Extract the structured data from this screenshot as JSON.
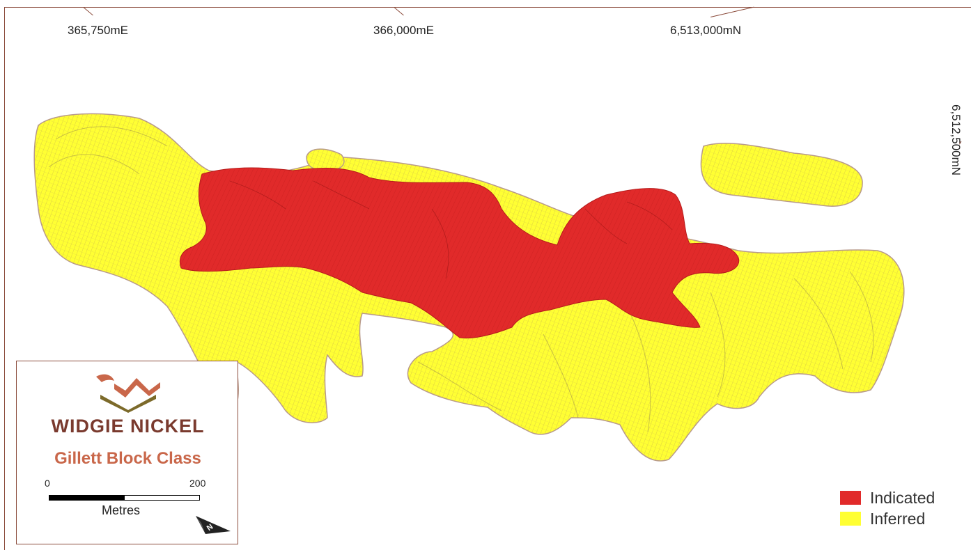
{
  "coordinates": {
    "easting_1": "365,750mE",
    "easting_2": "366,000mE",
    "northing_1": "6,513,000mN",
    "northing_2": "6,512,500mN"
  },
  "legend": {
    "items": [
      {
        "label": "Indicated",
        "color": "#e12a2a"
      },
      {
        "label": "Inferred",
        "color": "#ffff33"
      }
    ]
  },
  "infobox": {
    "company": "WIDGIE NICKEL",
    "subtitle": "Gillett Block Class",
    "scale": {
      "min": "0",
      "max": "200",
      "unit": "Metres"
    },
    "north_arrow_label": "N"
  },
  "colors": {
    "indicated": "#e12a2a",
    "inferred": "#ffff33",
    "outline": "#b89a8a",
    "brand_dark": "#7a3a2e",
    "brand_accent": "#c9674a",
    "brand_olive": "#7c6a2a"
  }
}
